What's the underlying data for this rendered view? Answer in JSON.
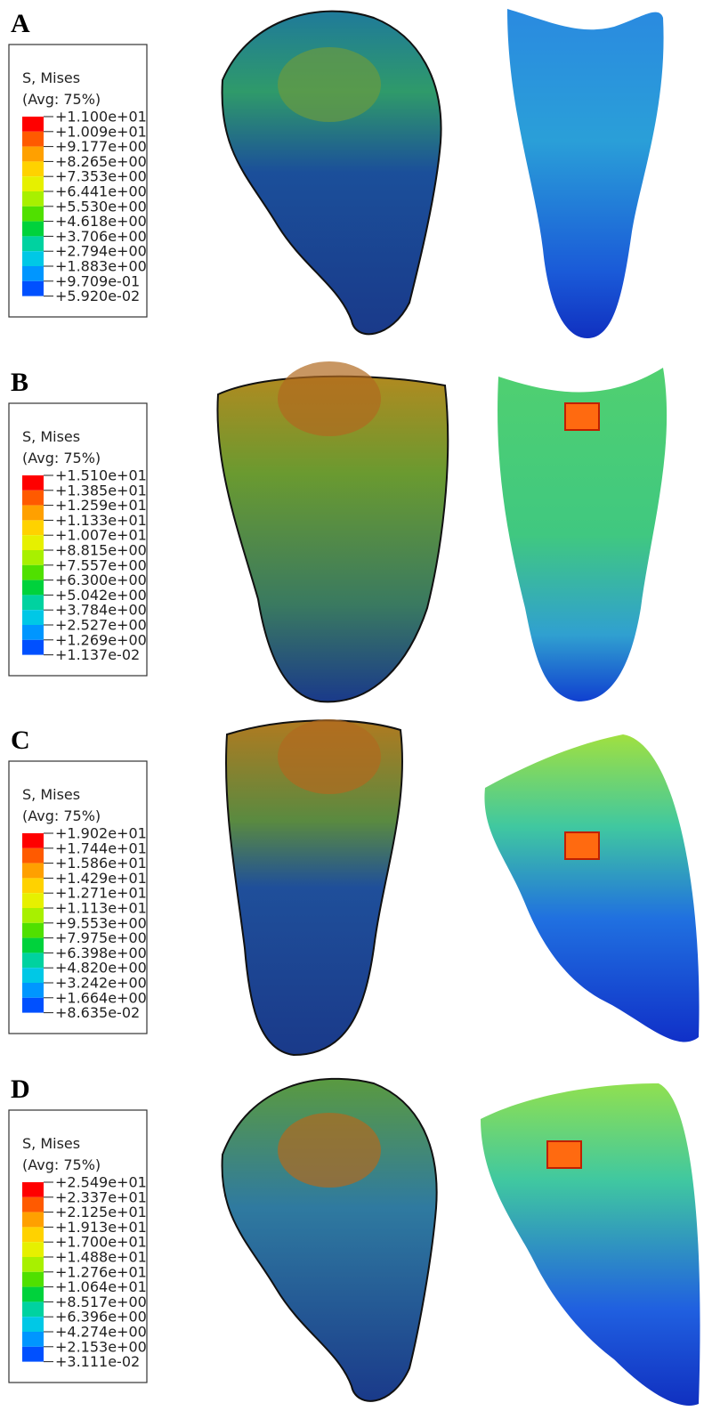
{
  "panels": [
    {
      "label": "A",
      "legend": {
        "title": "S, Mises",
        "subtitle": "(Avg: 75%)",
        "levels": [
          "+1.100e+01",
          "+1.009e+01",
          "+9.177e+00",
          "+8.265e+00",
          "+7.353e+00",
          "+6.441e+00",
          "+5.530e+00",
          "+4.618e+00",
          "+3.706e+00",
          "+2.794e+00",
          "+1.883e+00",
          "+9.709e-01",
          "+5.920e-02"
        ]
      }
    },
    {
      "label": "B",
      "legend": {
        "title": "S, Mises",
        "subtitle": "(Avg: 75%)",
        "levels": [
          "+1.510e+01",
          "+1.385e+01",
          "+1.259e+01",
          "+1.133e+01",
          "+1.007e+01",
          "+8.815e+00",
          "+7.557e+00",
          "+6.300e+00",
          "+5.042e+00",
          "+3.784e+00",
          "+2.527e+00",
          "+1.269e+00",
          "+1.137e-02"
        ]
      }
    },
    {
      "label": "C",
      "legend": {
        "title": "S, Mises",
        "subtitle": "(Avg: 75%)",
        "levels": [
          "+1.902e+01",
          "+1.744e+01",
          "+1.586e+01",
          "+1.429e+01",
          "+1.271e+01",
          "+1.113e+01",
          "+9.553e+00",
          "+7.975e+00",
          "+6.398e+00",
          "+4.820e+00",
          "+3.242e+00",
          "+1.664e+00",
          "+8.635e-02"
        ]
      }
    },
    {
      "label": "D",
      "legend": {
        "title": "S, Mises",
        "subtitle": "(Avg: 75%)",
        "levels": [
          "+2.549e+01",
          "+2.337e+01",
          "+2.125e+01",
          "+1.913e+01",
          "+1.700e+01",
          "+1.488e+01",
          "+1.276e+01",
          "+1.064e+01",
          "+8.517e+00",
          "+6.396e+00",
          "+4.274e+00",
          "+2.153e+00",
          "+3.111e-02"
        ]
      }
    }
  ]
}
